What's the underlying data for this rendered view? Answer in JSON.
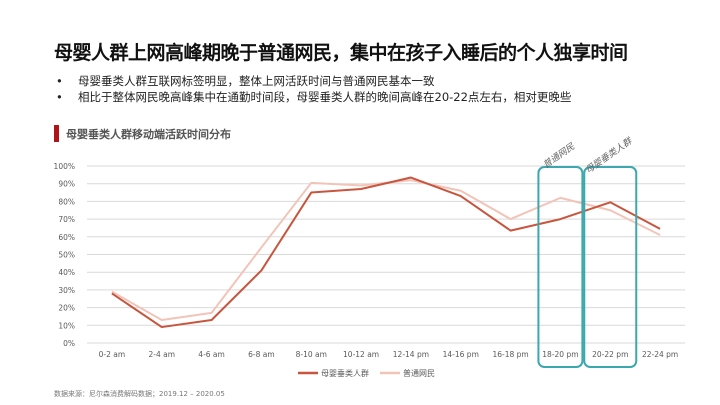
{
  "title": "母婴人群上网高峰期晚于普通网民，集中在孩子入睡后的个人独享时间",
  "bullets": [
    "母婴垂类人群互联网标签明显，整体上网活跃时间与普通网民基本一致",
    "相比于整体网民晚高峰集中在通勤时间段，母婴垂类人群的晚间高峰在20-22点左右，相对更晚些"
  ],
  "bullet_symbol": "•",
  "source": "数据来源：尼尔森消费解码数据；2019.12 – 2020.05",
  "chart_data": {
    "type": "line",
    "title": "母婴垂类人群移动端活跃时间分布",
    "categories": [
      "0-2 am",
      "2-4 am",
      "4-6 am",
      "6-8 am",
      "8-10 am",
      "10-12 am",
      "12-14 pm",
      "14-16 pm",
      "16-18 pm",
      "18-20 pm",
      "20-22 pm",
      "22-24 pm"
    ],
    "yticks": [
      "0%",
      "10%",
      "20%",
      "30%",
      "40%",
      "50%",
      "60%",
      "70%",
      "80%",
      "90%",
      "100%"
    ],
    "ylim": [
      0,
      100
    ],
    "series": [
      {
        "name": "母婴垂类人群",
        "color": "#c8553d",
        "values": [
          28,
          9,
          13,
          41,
          85,
          87,
          93.5,
          83,
          63.5,
          70,
          79.5,
          64.5
        ]
      },
      {
        "name": "普通网民",
        "color": "#f2c4b8",
        "values": [
          29,
          13,
          17,
          54,
          90.5,
          89,
          92,
          86,
          70,
          82,
          75,
          61
        ]
      }
    ],
    "legend": "bottom",
    "annotations": [
      {
        "label": "普通网民",
        "category": "18-20 pm"
      },
      {
        "label": "母婴垂类人群",
        "category": "20-22 pm"
      }
    ],
    "highlight_color": "#3aa8ae"
  }
}
